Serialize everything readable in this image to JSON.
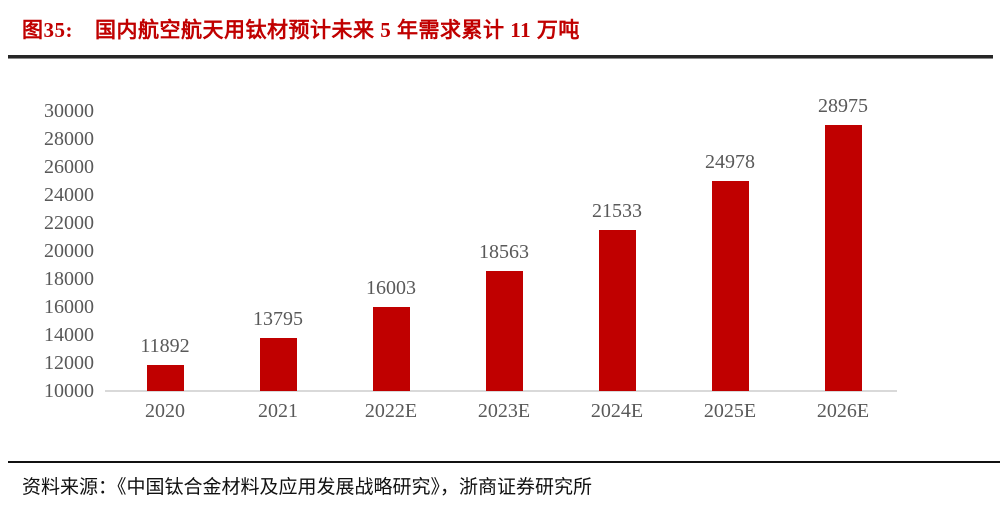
{
  "figure": {
    "title_tag": "图35:",
    "title_text": "国内航空航天用钛材预计未来 5 年需求累计 11 万吨",
    "source_label": "资料来源：",
    "source_text": "《中国钛合金材料及应用发展战略研究》，浙商证券研究所"
  },
  "colors": {
    "bar": "#c00000",
    "title": "#c00000",
    "axis_label": "#595959",
    "axis_line": "#d9d9d9",
    "rule": "#262626"
  },
  "chart_data": {
    "type": "bar",
    "categories": [
      "2020",
      "2021",
      "2022E",
      "2023E",
      "2024E",
      "2025E",
      "2026E"
    ],
    "values": [
      11892,
      13795,
      16003,
      18563,
      21533,
      24978,
      28975
    ],
    "title": "国内航空航天用钛材预计未来 5 年需求累计 11 万吨",
    "xlabel": "",
    "ylabel": "",
    "ylim": [
      10000,
      30000
    ],
    "ytick_step": 2000,
    "yticks": [
      10000,
      12000,
      14000,
      16000,
      18000,
      20000,
      22000,
      24000,
      26000,
      28000,
      30000
    ],
    "grid": false,
    "legend": false,
    "data_labels": true
  }
}
